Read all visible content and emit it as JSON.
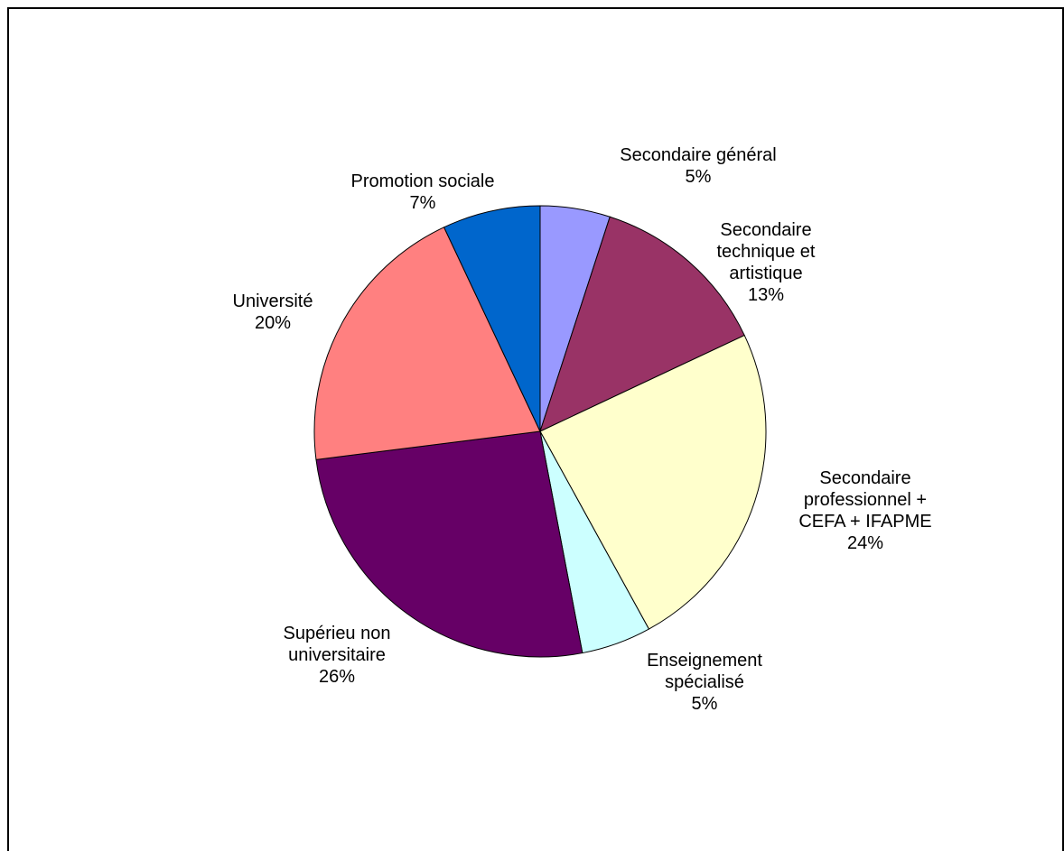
{
  "chart_data": {
    "type": "pie",
    "start_angle_deg": 0,
    "direction": "clockwise",
    "slices": [
      {
        "lines": [
          "Secondaire général"
        ],
        "pct_label": "5%",
        "value": 5,
        "color": "#9999ff"
      },
      {
        "lines": [
          "Secondaire",
          "technique et",
          "artistique"
        ],
        "pct_label": "13%",
        "value": 13,
        "color": "#993366"
      },
      {
        "lines": [
          "Secondaire",
          "professionnel +",
          "CEFA + IFAPME"
        ],
        "pct_label": "24%",
        "value": 24,
        "color": "#ffffcc"
      },
      {
        "lines": [
          "Enseignement",
          "spécialisé"
        ],
        "pct_label": "5%",
        "value": 5,
        "color": "#ccffff"
      },
      {
        "lines": [
          "Supérieu non",
          "universitaire"
        ],
        "pct_label": "26%",
        "value": 26,
        "color": "#660066"
      },
      {
        "lines": [
          "Université"
        ],
        "pct_label": "20%",
        "value": 20,
        "color": "#ff8080"
      },
      {
        "lines": [
          "Promotion sociale"
        ],
        "pct_label": "7%",
        "value": 7,
        "color": "#0066cc"
      }
    ],
    "legend": "none",
    "data_labels": "outside"
  }
}
